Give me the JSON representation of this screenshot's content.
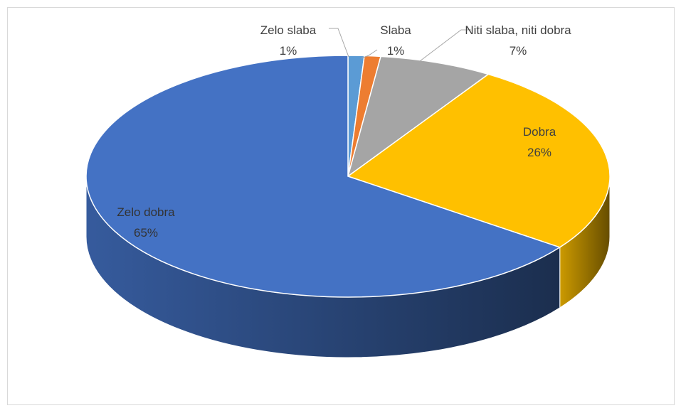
{
  "chart_data": {
    "type": "pie",
    "categories": [
      "Zelo slaba",
      "Slaba",
      "Niti slaba, niti dobra",
      "Dobra",
      "Zelo dobra"
    ],
    "values": [
      1,
      1,
      7,
      26,
      65
    ],
    "value_labels": [
      "1%",
      "1%",
      "7%",
      "26%",
      "65%"
    ],
    "colors": [
      "#5b9bd5",
      "#ed7d31",
      "#a5a5a5",
      "#ffc000",
      "#4472c4"
    ]
  }
}
